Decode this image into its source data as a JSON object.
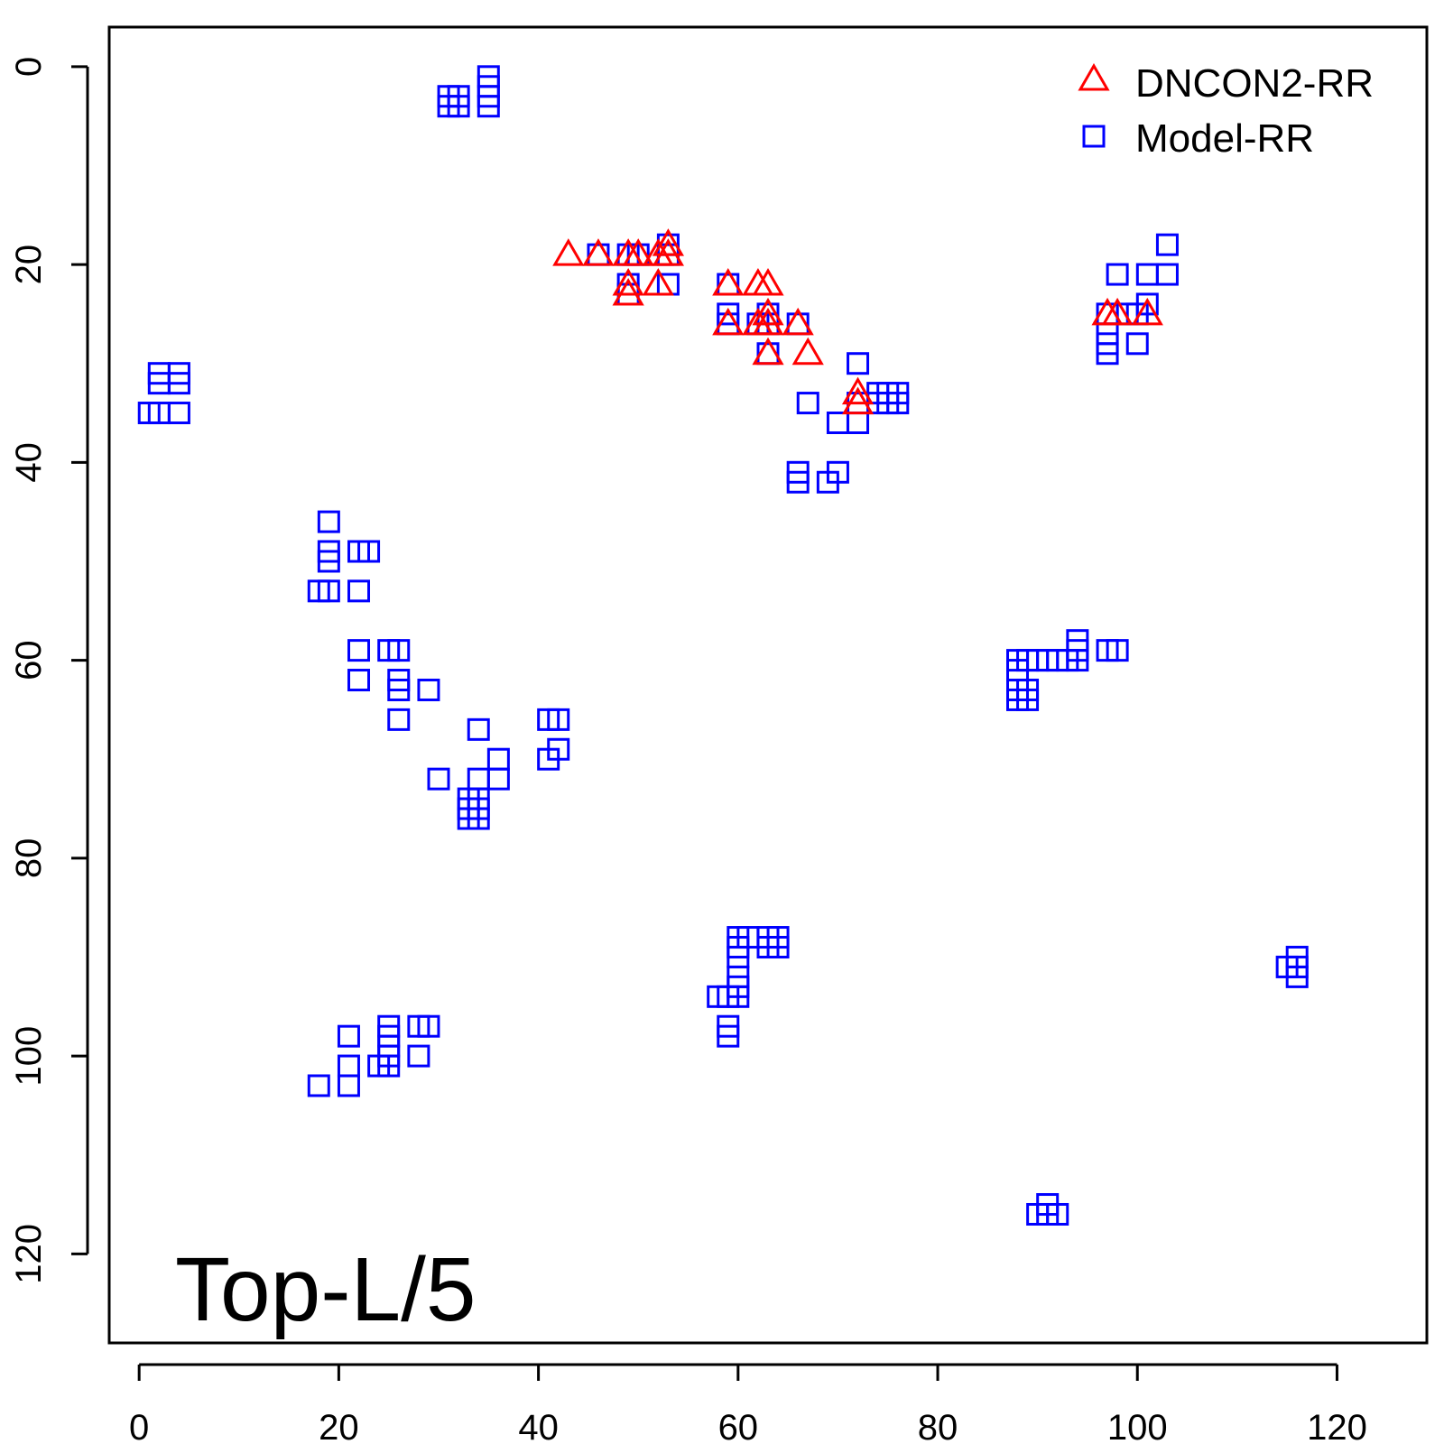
{
  "chart_data": {
    "type": "scatter",
    "title": "",
    "xlabel": "",
    "ylabel": "",
    "xlim": [
      -3,
      129
    ],
    "ylim": [
      -4,
      129
    ],
    "y_reversed": true,
    "grid": false,
    "xticks": [
      0,
      20,
      40,
      60,
      80,
      100,
      120
    ],
    "yticks": [
      0,
      20,
      40,
      60,
      80,
      100,
      120
    ],
    "tick_labels": {
      "x": [
        "0",
        "20",
        "40",
        "60",
        "80",
        "100",
        "120"
      ],
      "y": [
        "0",
        "20",
        "40",
        "60",
        "80",
        "100",
        "120"
      ]
    },
    "annotation": "Top-L/5",
    "legend": {
      "placement": "top-right",
      "entries": [
        {
          "label": "DNCON2-RR",
          "marker": "triangle",
          "color": "#ff0000"
        },
        {
          "label": "Model-RR",
          "marker": "square",
          "color": "#0000ff"
        }
      ]
    },
    "series": [
      {
        "name": "DNCON2-RR",
        "marker": "triangle",
        "color": "#ff0000",
        "points": [
          [
            43,
            19
          ],
          [
            46,
            19
          ],
          [
            49,
            19
          ],
          [
            50,
            19
          ],
          [
            52,
            19
          ],
          [
            53,
            18
          ],
          [
            53,
            19
          ],
          [
            49,
            22
          ],
          [
            49,
            23
          ],
          [
            52,
            22
          ],
          [
            59,
            22
          ],
          [
            62,
            22
          ],
          [
            63,
            22
          ],
          [
            59,
            26
          ],
          [
            62,
            26
          ],
          [
            63,
            25
          ],
          [
            63,
            26
          ],
          [
            66,
            26
          ],
          [
            63,
            29
          ],
          [
            67,
            29
          ],
          [
            72,
            33
          ],
          [
            72,
            34
          ],
          [
            97,
            25
          ],
          [
            98,
            25
          ],
          [
            101,
            25
          ]
        ]
      },
      {
        "name": "Model-RR",
        "marker": "square",
        "color": "#0000ff",
        "points": [
          [
            31,
            3
          ],
          [
            31,
            4
          ],
          [
            32,
            3
          ],
          [
            32,
            4
          ],
          [
            35,
            1
          ],
          [
            35,
            2
          ],
          [
            35,
            3
          ],
          [
            35,
            4
          ],
          [
            2,
            31
          ],
          [
            2,
            32
          ],
          [
            4,
            31
          ],
          [
            4,
            32
          ],
          [
            1,
            35
          ],
          [
            2,
            35
          ],
          [
            4,
            35
          ],
          [
            46,
            19
          ],
          [
            49,
            19
          ],
          [
            50,
            19
          ],
          [
            53,
            18
          ],
          [
            53,
            19
          ],
          [
            49,
            22
          ],
          [
            49,
            23
          ],
          [
            53,
            22
          ],
          [
            59,
            22
          ],
          [
            59,
            25
          ],
          [
            59,
            26
          ],
          [
            62,
            26
          ],
          [
            63,
            25
          ],
          [
            63,
            26
          ],
          [
            66,
            26
          ],
          [
            63,
            29
          ],
          [
            72,
            30
          ],
          [
            67,
            34
          ],
          [
            72,
            34
          ],
          [
            70,
            36
          ],
          [
            72,
            36
          ],
          [
            74,
            33
          ],
          [
            74,
            34
          ],
          [
            75,
            33
          ],
          [
            75,
            34
          ],
          [
            76,
            33
          ],
          [
            76,
            34
          ],
          [
            66,
            41
          ],
          [
            66,
            42
          ],
          [
            69,
            42
          ],
          [
            70,
            41
          ],
          [
            97,
            25
          ],
          [
            97,
            27
          ],
          [
            97,
            28
          ],
          [
            97,
            29
          ],
          [
            98,
            21
          ],
          [
            99,
            25
          ],
          [
            100,
            25
          ],
          [
            100,
            28
          ],
          [
            101,
            21
          ],
          [
            101,
            24
          ],
          [
            103,
            18
          ],
          [
            103,
            21
          ],
          [
            19,
            46
          ],
          [
            19,
            49
          ],
          [
            19,
            50
          ],
          [
            18,
            53
          ],
          [
            19,
            53
          ],
          [
            22,
            49
          ],
          [
            23,
            49
          ],
          [
            22,
            53
          ],
          [
            22,
            59
          ],
          [
            25,
            59
          ],
          [
            26,
            59
          ],
          [
            22,
            62
          ],
          [
            26,
            62
          ],
          [
            26,
            63
          ],
          [
            26,
            66
          ],
          [
            29,
            63
          ],
          [
            30,
            72
          ],
          [
            34,
            67
          ],
          [
            34,
            72
          ],
          [
            36,
            70
          ],
          [
            36,
            72
          ],
          [
            33,
            74
          ],
          [
            33,
            75
          ],
          [
            33,
            76
          ],
          [
            34,
            74
          ],
          [
            34,
            75
          ],
          [
            34,
            76
          ],
          [
            41,
            66
          ],
          [
            42,
            66
          ],
          [
            41,
            70
          ],
          [
            42,
            69
          ],
          [
            88,
            60
          ],
          [
            89,
            60
          ],
          [
            90,
            60
          ],
          [
            91,
            60
          ],
          [
            92,
            60
          ],
          [
            93,
            60
          ],
          [
            94,
            60
          ],
          [
            94,
            58
          ],
          [
            94,
            59
          ],
          [
            88,
            61
          ],
          [
            88,
            63
          ],
          [
            88,
            64
          ],
          [
            89,
            63
          ],
          [
            89,
            64
          ],
          [
            97,
            59
          ],
          [
            98,
            59
          ],
          [
            60,
            88
          ],
          [
            61,
            88
          ],
          [
            63,
            88
          ],
          [
            64,
            88
          ],
          [
            63,
            89
          ],
          [
            64,
            89
          ],
          [
            60,
            89
          ],
          [
            60,
            90
          ],
          [
            60,
            92
          ],
          [
            60,
            93
          ],
          [
            60,
            94
          ],
          [
            58,
            94
          ],
          [
            59,
            94
          ],
          [
            59,
            97
          ],
          [
            59,
            98
          ],
          [
            116,
            90
          ],
          [
            115,
            91
          ],
          [
            116,
            91
          ],
          [
            116,
            92
          ],
          [
            91,
            115
          ],
          [
            90,
            116
          ],
          [
            91,
            116
          ],
          [
            92,
            116
          ],
          [
            21,
            98
          ],
          [
            21,
            101
          ],
          [
            18,
            103
          ],
          [
            21,
            103
          ],
          [
            24,
            101
          ],
          [
            25,
            97
          ],
          [
            25,
            98
          ],
          [
            25,
            99
          ],
          [
            25,
            100
          ],
          [
            25,
            101
          ],
          [
            28,
            97
          ],
          [
            29,
            97
          ],
          [
            28,
            100
          ]
        ]
      }
    ]
  }
}
